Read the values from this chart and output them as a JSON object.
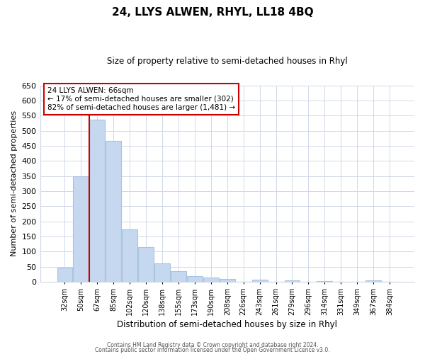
{
  "title": "24, LLYS ALWEN, RHYL, LL18 4BQ",
  "subtitle": "Size of property relative to semi-detached houses in Rhyl",
  "xlabel": "Distribution of semi-detached houses by size in Rhyl",
  "ylabel": "Number of semi-detached properties",
  "bar_labels": [
    "32sqm",
    "50sqm",
    "67sqm",
    "85sqm",
    "102sqm",
    "120sqm",
    "138sqm",
    "155sqm",
    "173sqm",
    "190sqm",
    "208sqm",
    "226sqm",
    "243sqm",
    "261sqm",
    "279sqm",
    "296sqm",
    "314sqm",
    "331sqm",
    "349sqm",
    "367sqm",
    "384sqm"
  ],
  "bar_values": [
    47,
    349,
    536,
    467,
    174,
    115,
    60,
    35,
    20,
    14,
    9,
    0,
    7,
    0,
    5,
    0,
    3,
    0,
    0,
    4,
    0
  ],
  "bar_color": "#c5d8f0",
  "bar_edge_color": "#a8c4e0",
  "highlight_line_color": "#cc0000",
  "highlight_bar_index": 2,
  "ylim": [
    0,
    650
  ],
  "yticks": [
    0,
    50,
    100,
    150,
    200,
    250,
    300,
    350,
    400,
    450,
    500,
    550,
    600,
    650
  ],
  "annotation_text_line1": "24 LLYS ALWEN: 66sqm",
  "annotation_text_line2": "← 17% of semi-detached houses are smaller (302)",
  "annotation_text_line3": "82% of semi-detached houses are larger (1,481) →",
  "footer_line1": "Contains HM Land Registry data © Crown copyright and database right 2024.",
  "footer_line2": "Contains public sector information licensed under the Open Government Licence v3.0.",
  "background_color": "#ffffff",
  "grid_color": "#d0d8e8"
}
